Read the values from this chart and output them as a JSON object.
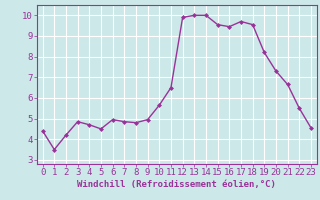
{
  "x": [
    0,
    1,
    2,
    3,
    4,
    5,
    6,
    7,
    8,
    9,
    10,
    11,
    12,
    13,
    14,
    15,
    16,
    17,
    18,
    19,
    20,
    21,
    22,
    23
  ],
  "y": [
    4.4,
    3.5,
    4.2,
    4.85,
    4.7,
    4.5,
    4.95,
    4.85,
    4.8,
    4.95,
    5.65,
    6.5,
    9.9,
    10.0,
    10.0,
    9.55,
    9.45,
    9.7,
    9.55,
    8.2,
    7.3,
    6.65,
    5.5,
    4.55
  ],
  "line_color": "#993399",
  "marker": "D",
  "marker_size": 2.0,
  "linewidth": 1.0,
  "bg_color": "#cce8e8",
  "grid_color": "#ffffff",
  "xlabel": "Windchill (Refroidissement éolien,°C)",
  "xlabel_fontsize": 6.5,
  "tick_fontsize": 6.5,
  "xlim": [
    -0.5,
    23.5
  ],
  "ylim": [
    2.8,
    10.5
  ],
  "yticks": [
    3,
    4,
    5,
    6,
    7,
    8,
    9,
    10
  ],
  "xticks": [
    0,
    1,
    2,
    3,
    4,
    5,
    6,
    7,
    8,
    9,
    10,
    11,
    12,
    13,
    14,
    15,
    16,
    17,
    18,
    19,
    20,
    21,
    22,
    23
  ]
}
